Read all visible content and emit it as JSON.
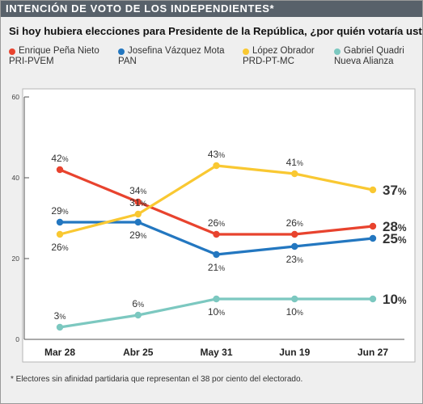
{
  "header": {
    "title": "INTENCIÓN DE VOTO DE LOS INDEPENDIENTES*"
  },
  "question": "Si hoy hubiera elecciones para Presidente de la República, ¿por quién votaría usted?",
  "footnote": "* Electores sin afinidad partidaria que representan el 38 por ciento del electorado.",
  "legend": [
    {
      "name": "Enrique Peña Nieto",
      "party": "PRI-PVEM",
      "color": "#e8432e"
    },
    {
      "name": "Josefina Vázquez Mota",
      "party": "PAN",
      "color": "#2377c0"
    },
    {
      "name": "López Obrador",
      "party": "PRD-PT-MC",
      "color": "#f9c832"
    },
    {
      "name": "Gabriel Quadri",
      "party": "Nueva Alianza",
      "color": "#7cc8c0"
    }
  ],
  "chart_data": {
    "type": "line",
    "categories": [
      "Mar 28",
      "Abr 25",
      "May 31",
      "Jun 19",
      "Jun 27"
    ],
    "ylim": [
      0,
      60
    ],
    "yticks": [
      0,
      20,
      40,
      60
    ],
    "grid": false,
    "series": [
      {
        "name": "Enrique Peña Nieto",
        "party": "PRI-PVEM",
        "color": "#e8432e",
        "values": [
          42,
          34,
          26,
          26,
          28
        ]
      },
      {
        "name": "Josefina Vázquez Mota",
        "party": "PAN",
        "color": "#2377c0",
        "values": [
          29,
          29,
          21,
          23,
          25
        ]
      },
      {
        "name": "López Obrador",
        "party": "PRD-PT-MC",
        "color": "#f9c832",
        "values": [
          26,
          31,
          43,
          41,
          37
        ]
      },
      {
        "name": "Gabriel Quadri",
        "party": "Nueva Alianza",
        "color": "#7cc8c0",
        "values": [
          3,
          6,
          10,
          10,
          10
        ]
      }
    ],
    "value_suffix": "%"
  }
}
